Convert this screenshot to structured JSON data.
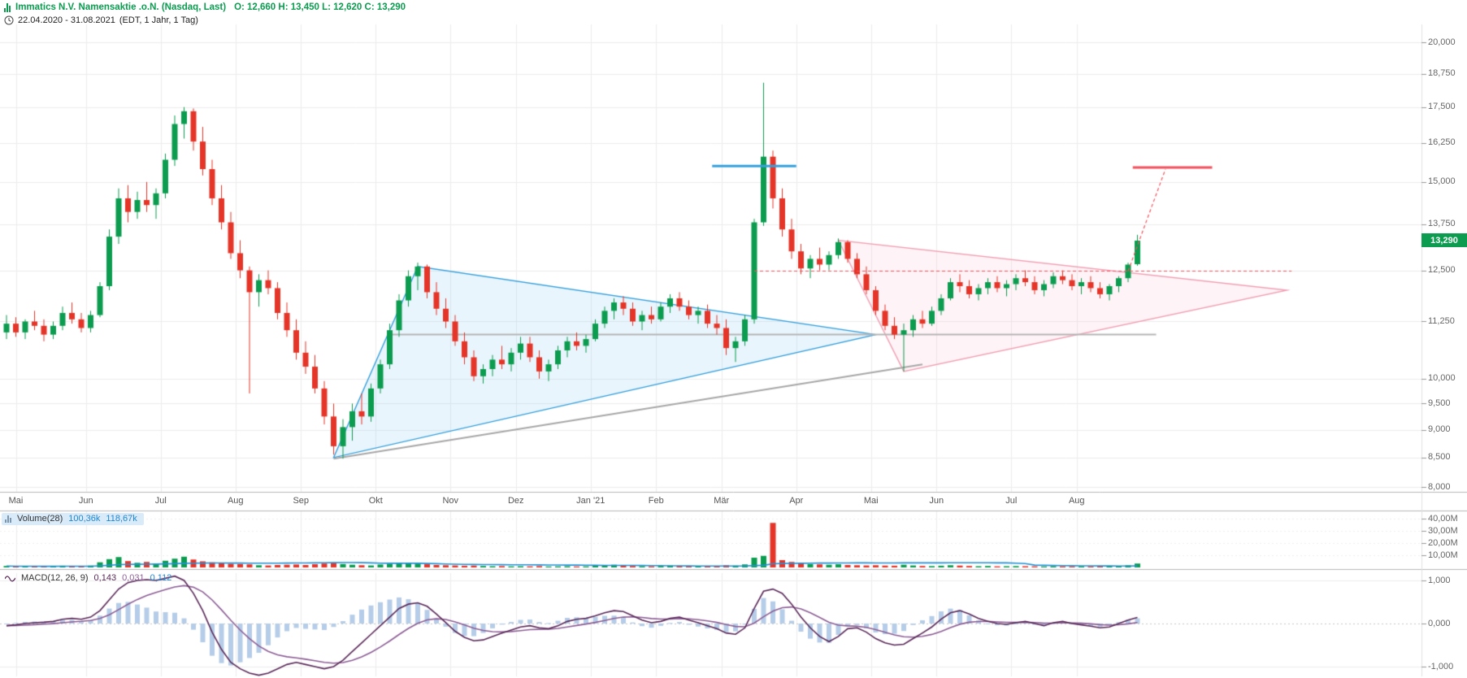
{
  "header": {
    "instrument": "Immatics N.V. Namensaktie .o.N. (Nasdaq, Last)",
    "ohlc": "O: 12,660  H: 13,450  L: 12,620  C: 13,290",
    "date_range": "22.04.2020 - 31.08.2021",
    "timeframe": "(EDT, 1 Jahr, 1 Tag)"
  },
  "price_badge": "13,290",
  "indicators": {
    "volume": {
      "label": "Volume(28)",
      "value1": "100,36k",
      "value2": "118,67k"
    },
    "macd": {
      "label": "MACD(12, 26, 9)",
      "value1": "0,143",
      "value2": "0,031",
      "value3": "0,112"
    }
  },
  "colors": {
    "up": "#0b9c4f",
    "down": "#e53528",
    "grid": "#ededed",
    "separator": "#b8b8b8",
    "axis_text": "#666666",
    "blue_drawing": "#35a0dd",
    "blue_fill": "rgba(120,190,235,0.16)",
    "pink_drawing": "#f2a0b4",
    "pink_fill": "rgba(248,170,190,0.14)",
    "red_line": "#f2545e",
    "gray_line": "#a8a8a8",
    "volume_ma": "#2492d6",
    "macd_line": "#5b2a5a",
    "macd_signal": "#8d5f96",
    "macd_hist": "#b5cde8",
    "badge_bg": "#0b9c4f",
    "accent_blue": "#1e88d2"
  },
  "chart_data": {
    "type": "candlestick",
    "title": "Immatics N.V. Namensaktie .o.N. (Nasdaq, Last)",
    "scale": "log",
    "ylim": [
      8.0,
      20.0
    ],
    "legend_position": "top-left",
    "grid": true,
    "x_ticks": [
      {
        "label": "Mai",
        "i": 1
      },
      {
        "label": "Jun",
        "i": 8.5
      },
      {
        "label": "Jul",
        "i": 16.5
      },
      {
        "label": "Aug",
        "i": 24.5
      },
      {
        "label": "Sep",
        "i": 31.5
      },
      {
        "label": "Okt",
        "i": 39.5
      },
      {
        "label": "Nov",
        "i": 47.5
      },
      {
        "label": "Dez",
        "i": 54.5
      },
      {
        "label": "Jan '21",
        "i": 62.5
      },
      {
        "label": "Feb",
        "i": 69.5
      },
      {
        "label": "Mär",
        "i": 76.5
      },
      {
        "label": "Apr",
        "i": 84.5
      },
      {
        "label": "Mai",
        "i": 92.5
      },
      {
        "label": "Jun",
        "i": 99.5
      },
      {
        "label": "Jul",
        "i": 107.5
      },
      {
        "label": "Aug",
        "i": 114.5
      }
    ],
    "y_ticks": [
      {
        "label": "20,000",
        "value": 20.0
      },
      {
        "label": "18,750",
        "value": 18.75
      },
      {
        "label": "17,500",
        "value": 17.5
      },
      {
        "label": "16,250",
        "value": 16.25
      },
      {
        "label": "15,000",
        "value": 15.0
      },
      {
        "label": "13,750",
        "value": 13.75
      },
      {
        "label": "12,500",
        "value": 12.5
      },
      {
        "label": "11,250",
        "value": 11.25
      },
      {
        "label": "10,000",
        "value": 10.0
      },
      {
        "label": "9,500",
        "value": 9.5
      },
      {
        "label": "9,000",
        "value": 9.0
      },
      {
        "label": "8,500",
        "value": 8.5
      },
      {
        "label": "8,000",
        "value": 8.0
      }
    ],
    "volume_ticks": [
      {
        "label": "40,00M",
        "value": 40
      },
      {
        "label": "30,00M",
        "value": 30
      },
      {
        "label": "20,00M",
        "value": 20
      },
      {
        "label": "10,00M",
        "value": 10
      }
    ],
    "macd_ticks": [
      {
        "label": "1,000",
        "value": 1.0
      },
      {
        "label": "0,000",
        "value": 0.0
      },
      {
        "label": "-1,000",
        "value": -1.0
      }
    ],
    "last_close": 13.29,
    "last_ohlc": [
      12.66,
      13.45,
      12.62,
      13.29
    ],
    "candles": [
      [
        11.0,
        11.4,
        10.85,
        11.2
      ],
      [
        11.2,
        11.35,
        10.9,
        11.0
      ],
      [
        11.0,
        11.3,
        10.85,
        11.25
      ],
      [
        11.25,
        11.5,
        11.05,
        11.15
      ],
      [
        11.15,
        11.3,
        10.8,
        10.95
      ],
      [
        10.95,
        11.25,
        10.85,
        11.15
      ],
      [
        11.15,
        11.6,
        11.05,
        11.45
      ],
      [
        11.45,
        11.7,
        11.2,
        11.3
      ],
      [
        11.3,
        11.45,
        11.0,
        11.1
      ],
      [
        11.1,
        11.5,
        11.0,
        11.4
      ],
      [
        11.4,
        12.2,
        11.35,
        12.1
      ],
      [
        12.1,
        13.6,
        12.0,
        13.4
      ],
      [
        13.4,
        14.8,
        13.2,
        14.5
      ],
      [
        14.5,
        14.9,
        13.8,
        14.1
      ],
      [
        14.1,
        14.7,
        13.9,
        14.45
      ],
      [
        14.45,
        15.0,
        14.1,
        14.3
      ],
      [
        14.3,
        14.8,
        13.9,
        14.65
      ],
      [
        14.65,
        15.9,
        14.5,
        15.7
      ],
      [
        15.7,
        17.2,
        15.5,
        16.9
      ],
      [
        16.9,
        17.5,
        16.4,
        17.35
      ],
      [
        17.35,
        17.45,
        16.0,
        16.3
      ],
      [
        16.3,
        16.8,
        15.2,
        15.4
      ],
      [
        15.4,
        15.7,
        14.3,
        14.5
      ],
      [
        14.5,
        14.9,
        13.6,
        13.8
      ],
      [
        13.8,
        14.1,
        12.8,
        12.95
      ],
      [
        12.95,
        13.3,
        12.3,
        12.5
      ],
      [
        12.5,
        12.6,
        9.7,
        11.95
      ],
      [
        11.95,
        12.4,
        11.6,
        12.25
      ],
      [
        12.25,
        12.5,
        11.9,
        12.05
      ],
      [
        12.05,
        12.2,
        11.3,
        11.45
      ],
      [
        11.45,
        11.7,
        10.9,
        11.05
      ],
      [
        11.05,
        11.3,
        10.4,
        10.55
      ],
      [
        10.55,
        10.8,
        10.1,
        10.25
      ],
      [
        10.25,
        10.5,
        9.7,
        9.8
      ],
      [
        9.8,
        9.95,
        9.1,
        9.25
      ],
      [
        9.25,
        9.5,
        8.55,
        8.7
      ],
      [
        8.7,
        9.2,
        8.48,
        9.05
      ],
      [
        9.05,
        9.5,
        8.8,
        9.35
      ],
      [
        9.35,
        9.7,
        9.1,
        9.25
      ],
      [
        9.25,
        9.9,
        9.15,
        9.8
      ],
      [
        9.8,
        10.4,
        9.7,
        10.3
      ],
      [
        10.3,
        11.2,
        10.2,
        11.05
      ],
      [
        11.05,
        11.9,
        10.9,
        11.75
      ],
      [
        11.75,
        12.5,
        11.6,
        12.35
      ],
      [
        12.35,
        12.7,
        12.0,
        12.6
      ],
      [
        12.6,
        12.65,
        11.8,
        11.95
      ],
      [
        11.95,
        12.2,
        11.4,
        11.55
      ],
      [
        11.55,
        11.8,
        11.1,
        11.25
      ],
      [
        11.25,
        11.4,
        10.7,
        10.8
      ],
      [
        10.8,
        11.0,
        10.3,
        10.45
      ],
      [
        10.45,
        10.6,
        9.95,
        10.05
      ],
      [
        10.05,
        10.3,
        9.9,
        10.2
      ],
      [
        10.2,
        10.5,
        10.05,
        10.4
      ],
      [
        10.4,
        10.7,
        10.2,
        10.3
      ],
      [
        10.3,
        10.65,
        10.15,
        10.55
      ],
      [
        10.55,
        10.9,
        10.4,
        10.75
      ],
      [
        10.75,
        10.9,
        10.35,
        10.45
      ],
      [
        10.45,
        10.6,
        10.0,
        10.15
      ],
      [
        10.15,
        10.4,
        9.95,
        10.3
      ],
      [
        10.3,
        10.7,
        10.2,
        10.6
      ],
      [
        10.6,
        10.9,
        10.45,
        10.8
      ],
      [
        10.8,
        11.0,
        10.6,
        10.7
      ],
      [
        10.7,
        10.95,
        10.55,
        10.85
      ],
      [
        10.85,
        11.3,
        10.8,
        11.2
      ],
      [
        11.2,
        11.6,
        11.1,
        11.5
      ],
      [
        11.5,
        11.8,
        11.3,
        11.7
      ],
      [
        11.7,
        11.85,
        11.4,
        11.55
      ],
      [
        11.55,
        11.7,
        11.15,
        11.25
      ],
      [
        11.25,
        11.5,
        11.05,
        11.4
      ],
      [
        11.4,
        11.6,
        11.2,
        11.3
      ],
      [
        11.3,
        11.7,
        11.25,
        11.6
      ],
      [
        11.6,
        11.9,
        11.45,
        11.8
      ],
      [
        11.8,
        11.95,
        11.5,
        11.6
      ],
      [
        11.6,
        11.75,
        11.3,
        11.4
      ],
      [
        11.4,
        11.6,
        11.2,
        11.5
      ],
      [
        11.5,
        11.65,
        11.1,
        11.2
      ],
      [
        11.2,
        11.4,
        10.95,
        11.1
      ],
      [
        11.1,
        11.3,
        10.5,
        10.65
      ],
      [
        10.65,
        10.9,
        10.35,
        10.8
      ],
      [
        10.8,
        11.4,
        10.7,
        11.3
      ],
      [
        11.3,
        13.9,
        11.2,
        13.8
      ],
      [
        13.8,
        18.4,
        13.7,
        15.8
      ],
      [
        15.8,
        16.0,
        14.2,
        14.5
      ],
      [
        14.5,
        14.8,
        13.4,
        13.6
      ],
      [
        13.6,
        13.9,
        12.8,
        13.0
      ],
      [
        13.0,
        13.2,
        12.4,
        12.55
      ],
      [
        12.55,
        12.9,
        12.3,
        12.8
      ],
      [
        12.8,
        13.1,
        12.5,
        12.65
      ],
      [
        12.65,
        13.0,
        12.5,
        12.9
      ],
      [
        12.9,
        13.35,
        12.8,
        13.25
      ],
      [
        13.25,
        13.3,
        12.7,
        12.8
      ],
      [
        12.8,
        12.95,
        12.3,
        12.4
      ],
      [
        12.4,
        12.6,
        11.9,
        12.0
      ],
      [
        12.0,
        12.1,
        11.4,
        11.5
      ],
      [
        11.5,
        11.65,
        11.05,
        11.15
      ],
      [
        11.15,
        11.35,
        10.85,
        10.95
      ],
      [
        10.95,
        11.2,
        10.15,
        11.05
      ],
      [
        11.05,
        11.4,
        10.9,
        11.3
      ],
      [
        11.3,
        11.5,
        11.1,
        11.2
      ],
      [
        11.2,
        11.6,
        11.15,
        11.5
      ],
      [
        11.5,
        11.9,
        11.4,
        11.8
      ],
      [
        11.8,
        12.3,
        11.75,
        12.2
      ],
      [
        12.2,
        12.4,
        11.95,
        12.1
      ],
      [
        12.1,
        12.25,
        11.8,
        11.9
      ],
      [
        11.9,
        12.15,
        11.75,
        12.05
      ],
      [
        12.05,
        12.3,
        11.9,
        12.2
      ],
      [
        12.2,
        12.35,
        11.95,
        12.05
      ],
      [
        12.05,
        12.25,
        11.85,
        12.15
      ],
      [
        12.15,
        12.4,
        12.0,
        12.3
      ],
      [
        12.3,
        12.5,
        12.1,
        12.2
      ],
      [
        12.2,
        12.35,
        11.9,
        12.0
      ],
      [
        12.0,
        12.25,
        11.85,
        12.15
      ],
      [
        12.15,
        12.45,
        12.05,
        12.35
      ],
      [
        12.35,
        12.5,
        12.15,
        12.25
      ],
      [
        12.25,
        12.4,
        12.0,
        12.1
      ],
      [
        12.1,
        12.3,
        11.9,
        12.2
      ],
      [
        12.2,
        12.35,
        11.95,
        12.05
      ],
      [
        12.05,
        12.2,
        11.8,
        11.9
      ],
      [
        11.9,
        12.15,
        11.75,
        12.1
      ],
      [
        12.1,
        12.35,
        11.95,
        12.3
      ],
      [
        12.3,
        12.7,
        12.2,
        12.65
      ],
      [
        12.66,
        13.45,
        12.62,
        13.29
      ]
    ],
    "volume_m": [
      1.2,
      0.9,
      0.8,
      1.1,
      0.7,
      0.9,
      1.4,
      1.0,
      0.8,
      1.5,
      4.2,
      6.8,
      8.5,
      5.2,
      3.8,
      4.5,
      3.2,
      5.5,
      7.2,
      8.8,
      6.5,
      5.0,
      4.2,
      3.5,
      3.0,
      2.8,
      2.5,
      1.8,
      1.6,
      2.0,
      2.2,
      2.4,
      2.0,
      2.6,
      3.2,
      3.8,
      2.8,
      2.2,
      1.8,
      1.6,
      2.4,
      3.0,
      3.4,
      3.8,
      3.2,
      2.6,
      2.0,
      1.8,
      1.6,
      1.4,
      1.5,
      1.2,
      1.0,
      1.1,
      0.9,
      1.0,
      0.9,
      1.1,
      0.8,
      0.9,
      1.0,
      0.8,
      0.9,
      1.4,
      1.8,
      2.2,
      1.6,
      1.2,
      1.0,
      0.9,
      1.2,
      1.5,
      1.3,
      1.0,
      0.9,
      1.1,
      1.0,
      1.8,
      1.5,
      2.5,
      8.0,
      9.5,
      36.5,
      6.0,
      4.5,
      3.5,
      2.8,
      2.5,
      2.2,
      2.6,
      2.0,
      1.8,
      1.6,
      1.8,
      1.5,
      1.4,
      2.2,
      1.6,
      1.2,
      1.1,
      1.4,
      1.8,
      1.5,
      1.2,
      1.0,
      1.2,
      0.9,
      1.0,
      1.1,
      1.0,
      0.9,
      0.8,
      1.0,
      0.9,
      0.8,
      0.9,
      0.8,
      1.0,
      0.9,
      1.1,
      1.8,
      3.2
    ],
    "macd": [
      -0.05,
      -0.03,
      0.0,
      0.02,
      0.03,
      0.05,
      0.1,
      0.12,
      0.1,
      0.15,
      0.3,
      0.55,
      0.8,
      0.95,
      1.0,
      1.02,
      1.0,
      1.05,
      1.1,
      1.0,
      0.7,
      0.3,
      -0.2,
      -0.6,
      -0.9,
      -1.05,
      -1.15,
      -1.2,
      -1.15,
      -1.05,
      -0.95,
      -0.9,
      -0.95,
      -1.0,
      -1.05,
      -1.0,
      -0.85,
      -0.65,
      -0.45,
      -0.25,
      -0.05,
      0.15,
      0.35,
      0.45,
      0.48,
      0.4,
      0.22,
      0.02,
      -0.18,
      -0.32,
      -0.4,
      -0.38,
      -0.3,
      -0.22,
      -0.15,
      -0.08,
      -0.05,
      -0.1,
      -0.12,
      -0.05,
      0.05,
      0.1,
      0.12,
      0.18,
      0.25,
      0.3,
      0.28,
      0.18,
      0.08,
      0.02,
      0.05,
      0.12,
      0.15,
      0.08,
      0.02,
      -0.05,
      -0.12,
      -0.22,
      -0.25,
      -0.1,
      0.35,
      0.75,
      0.8,
      0.7,
      0.45,
      0.15,
      -0.1,
      -0.3,
      -0.42,
      -0.3,
      -0.12,
      -0.1,
      -0.2,
      -0.35,
      -0.45,
      -0.5,
      -0.48,
      -0.35,
      -0.22,
      -0.08,
      0.1,
      0.25,
      0.3,
      0.22,
      0.12,
      0.05,
      0.0,
      -0.02,
      0.02,
      0.05,
      0.0,
      -0.05,
      0.02,
      0.05,
      0.0,
      -0.03,
      -0.06,
      -0.1,
      -0.08,
      0.0,
      0.08,
      0.143
    ],
    "macd_last": {
      "macd": 0.143,
      "signal": 0.031,
      "hist": 0.112
    },
    "drawings": {
      "blue_triangle": {
        "points_ip": [
          [
            44,
            12.6
          ],
          [
            35,
            8.5
          ],
          [
            93,
            10.95
          ]
        ]
      },
      "pink_triangle": {
        "points_ip": [
          [
            89,
            13.3
          ],
          [
            96,
            10.15
          ],
          [
            137,
            12.0
          ]
        ]
      },
      "blue_hline": {
        "price": 15.5,
        "i0": 75.5,
        "i1": 84.5
      },
      "red_hline": {
        "price": 15.45,
        "i0": 120.5,
        "i1": 129
      },
      "red_dashed_hline": {
        "price": 12.48,
        "i0": 80,
        "i1": 137.5
      },
      "red_dashed_segment": {
        "from": [
          120,
          12.48
        ],
        "to": [
          124,
          15.4
        ]
      },
      "gray_trendline": {
        "from": [
          35,
          8.48
        ],
        "to": [
          98,
          10.3
        ]
      },
      "gray_hline": {
        "price": 10.95,
        "i0": 41,
        "i1": 123
      }
    }
  }
}
